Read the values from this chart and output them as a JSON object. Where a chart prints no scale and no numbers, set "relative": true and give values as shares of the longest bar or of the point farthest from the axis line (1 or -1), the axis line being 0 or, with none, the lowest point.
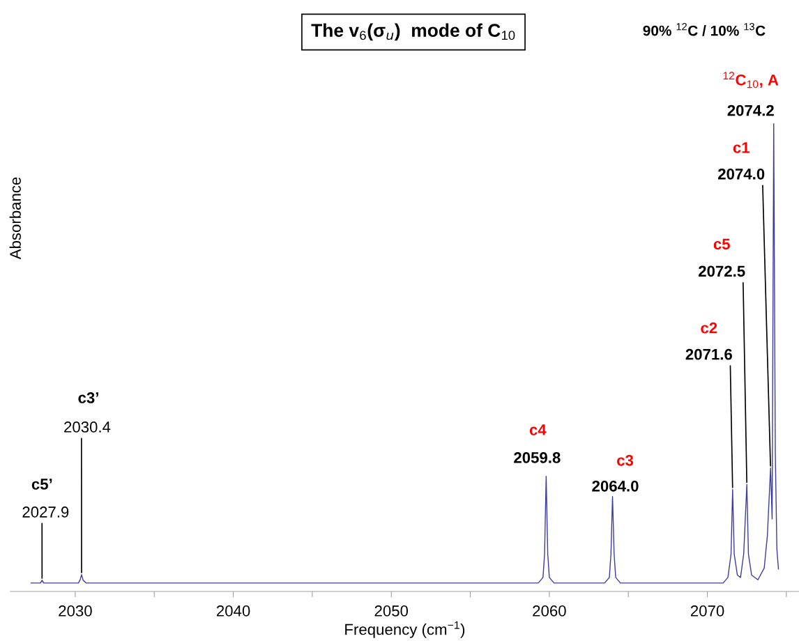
{
  "chart_data": {
    "type": "line",
    "relative": true,
    "title": "The v$_{6}$(σ$_{u}$)  mode of C$_{10}$",
    "subtitle": "90% $^{12}$C / 10% $^{13}$C",
    "xlabel": "Frequency (cm$^{−1}$)",
    "ylabel": "Absorbance",
    "series": [
      {
        "color": "#3c3ca0",
        "x": [
          2027.2,
          2027.8,
          2027.9,
          2028.0,
          2030.2,
          2030.3,
          2030.4,
          2030.5,
          2030.7,
          2059.3,
          2059.6,
          2059.7,
          2059.8,
          2059.9,
          2060.0,
          2060.3,
          2063.5,
          2063.8,
          2063.9,
          2064.0,
          2064.1,
          2064.2,
          2064.5,
          2071.0,
          2071.3,
          2071.5,
          2071.6,
          2071.7,
          2071.9,
          2072.1,
          2072.3,
          2072.5,
          2072.6,
          2072.8,
          2073.2,
          2073.6,
          2073.8,
          2074.0,
          2074.1,
          2074.2,
          2074.3,
          2074.4,
          2074.5
        ],
        "values": [
          0.018,
          0.018,
          0.024,
          0.018,
          0.018,
          0.024,
          0.036,
          0.024,
          0.018,
          0.018,
          0.03,
          0.08,
          0.246,
          0.08,
          0.03,
          0.018,
          0.018,
          0.03,
          0.08,
          0.203,
          0.08,
          0.03,
          0.018,
          0.018,
          0.03,
          0.08,
          0.218,
          0.08,
          0.035,
          0.03,
          0.08,
          0.229,
          0.08,
          0.035,
          0.025,
          0.05,
          0.12,
          0.264,
          0.155,
          1.0,
          0.3,
          0.09,
          0.048
        ]
      }
    ],
    "xlim": [
      2025.9,
      2075.8
    ],
    "xticks": [
      2030,
      {
        "value": 2035,
        "label": null
      },
      2040,
      {
        "value": 2045,
        "label": null
      },
      2050,
      {
        "value": 2055,
        "label": null
      },
      2060,
      {
        "value": 2065,
        "label": null
      },
      2070,
      {
        "value": 2075,
        "label": null
      }
    ],
    "tick_labels": "x",
    "annotations": [
      "$^{12}$C$_{10}$, A",
      {
        "text": "2074.2",
        "x": 2074.2,
        "y": 1.0
      },
      "c1",
      {
        "text": "2074.0",
        "x": 2074.0,
        "y": 0.264
      },
      "c5",
      {
        "text": "2072.5",
        "x": 2072.5,
        "y": 0.229
      },
      "c2",
      {
        "text": "2071.6",
        "x": 2071.6,
        "y": 0.218
      },
      "c3",
      {
        "text": "2064.0",
        "x": 2064.0,
        "y": 0.203
      },
      "c4",
      {
        "text": "2059.8",
        "x": 2059.8,
        "y": 0.246
      },
      "c3’",
      {
        "text": "2030.4",
        "x": 2030.4,
        "y": 0.036
      },
      "c5’",
      {
        "text": "2027.9",
        "x": 2027.9,
        "y": 0.024
      }
    ]
  }
}
